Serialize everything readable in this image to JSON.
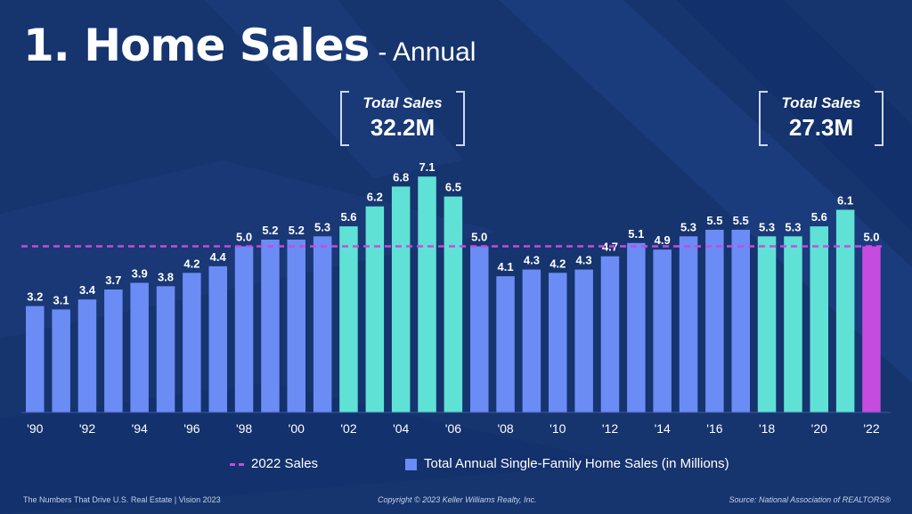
{
  "title": {
    "main": "1. Home Sales",
    "sub": "- Annual"
  },
  "callouts": [
    {
      "label": "Total Sales",
      "value": "32.2M"
    },
    {
      "label": "Total Sales",
      "value": "27.3M"
    }
  ],
  "legend": {
    "reference": "2022 Sales",
    "bars": "Total Annual Single-Family Home Sales (in Millions)"
  },
  "footer": {
    "left": "The Numbers That Drive U.S. Real Estate  |  Vision 2023",
    "center": "Copyright © 2023 Keller Williams Realty, Inc.",
    "right": "Source: National Association of REALTORS®"
  },
  "colors": {
    "background": "#16346e",
    "bar_default": "#6b8cf5",
    "bar_highlight": "#5fe2d5",
    "bar_current": "#c64bdf",
    "reference_line": "#c64bdf"
  },
  "chart_data": {
    "type": "bar",
    "categories": [
      "1990",
      "1991",
      "1992",
      "1993",
      "1994",
      "1995",
      "1996",
      "1997",
      "1998",
      "1999",
      "2000",
      "2001",
      "2002",
      "2003",
      "2004",
      "2005",
      "2006",
      "2007",
      "2008",
      "2009",
      "2010",
      "2011",
      "2012",
      "2013",
      "2014",
      "2015",
      "2016",
      "2017",
      "2018",
      "2019",
      "2020",
      "2021",
      "2022"
    ],
    "tick_labels": [
      "'90",
      "",
      "'92",
      "",
      "'94",
      "",
      "'96",
      "",
      "'98",
      "",
      "'00",
      "",
      "'02",
      "",
      "'04",
      "",
      "'06",
      "",
      "'08",
      "",
      "'10",
      "",
      "'12",
      "",
      "'14",
      "",
      "'16",
      "",
      "'18",
      "",
      "'20",
      "",
      "'22"
    ],
    "values": [
      3.2,
      3.1,
      3.4,
      3.7,
      3.9,
      3.8,
      4.2,
      4.4,
      5.0,
      5.2,
      5.2,
      5.3,
      5.6,
      6.2,
      6.8,
      7.1,
      6.5,
      5.0,
      4.1,
      4.3,
      4.2,
      4.3,
      4.7,
      5.1,
      4.9,
      5.3,
      5.5,
      5.5,
      5.3,
      5.3,
      5.6,
      6.1,
      5.0
    ],
    "value_labels": [
      "3.2",
      "3.1",
      "3.4",
      "3.7",
      "3.9",
      "3.8",
      "4.2",
      "4.4",
      "5.0",
      "5.2",
      "5.2",
      "5.3",
      "5.6",
      "6.2",
      "6.8",
      "7.1",
      "6.5",
      "5.0",
      "4.1",
      "4.3",
      "4.2",
      "4.3",
      "4.7",
      "5.1",
      "4.9",
      "5.3",
      "5.5",
      "5.5",
      "5.3",
      "5.3",
      "5.6",
      "6.1",
      "5.0"
    ],
    "highlight_years": [
      "2002",
      "2003",
      "2004",
      "2005",
      "2006",
      "2018",
      "2019",
      "2020",
      "2021"
    ],
    "current_year": "2022",
    "reference_line": {
      "value": 5.0,
      "name": "2022 Sales"
    },
    "ylim": [
      0,
      7.1
    ],
    "grid": false,
    "legend_position": "bottom"
  }
}
